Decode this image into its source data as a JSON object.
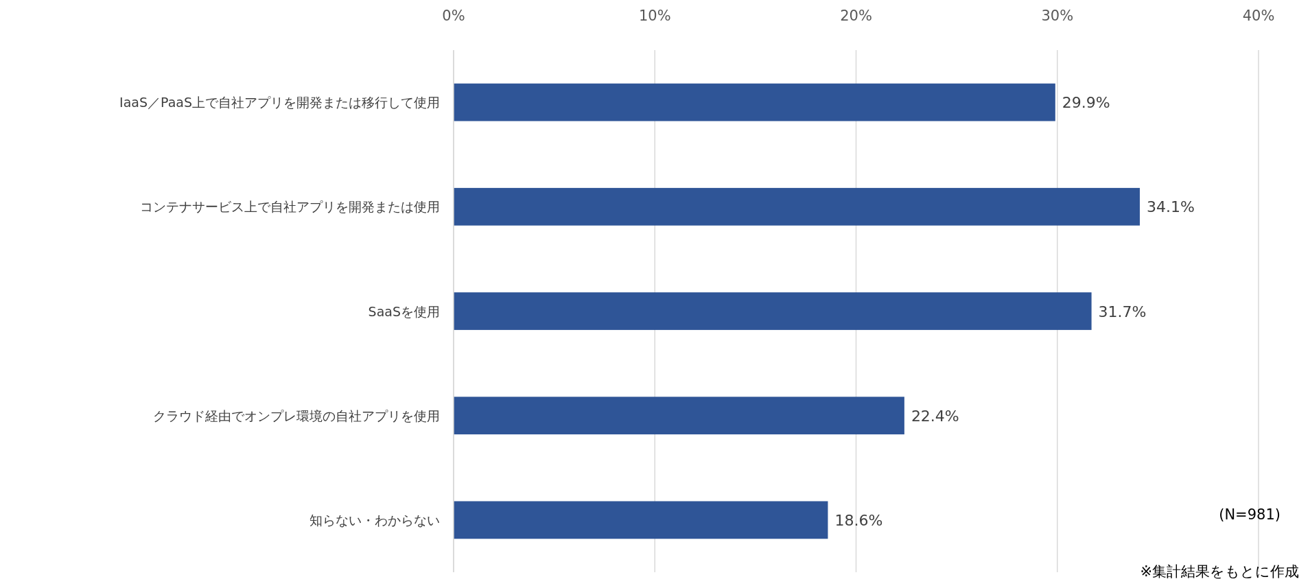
{
  "chart_data": {
    "type": "bar",
    "orientation": "horizontal",
    "categories": [
      "IaaS／PaaS上で自社アプリを開発または移行して使用",
      "コンテナサービス上で自社アプリを開発または使用",
      "SaaSを使用",
      "クラウド経由でオンプレ環境の自社アプリを使用",
      "知らない・わからない"
    ],
    "values": [
      29.9,
      34.1,
      31.7,
      22.4,
      18.6
    ],
    "value_labels": [
      "29.9%",
      "34.1%",
      "31.7%",
      "22.4%",
      "18.6%"
    ],
    "color": "#2f5597",
    "xlim": [
      0,
      40
    ],
    "xticks": [
      {
        "value": 0,
        "label": "0%"
      },
      {
        "value": 10,
        "label": "10%"
      },
      {
        "value": 20,
        "label": "20%"
      },
      {
        "value": 30,
        "label": "30%"
      },
      {
        "value": 40,
        "label": "40%"
      }
    ],
    "grid": "x",
    "annotations": [
      "(N=981)",
      "※集計結果をもとに作成"
    ]
  }
}
